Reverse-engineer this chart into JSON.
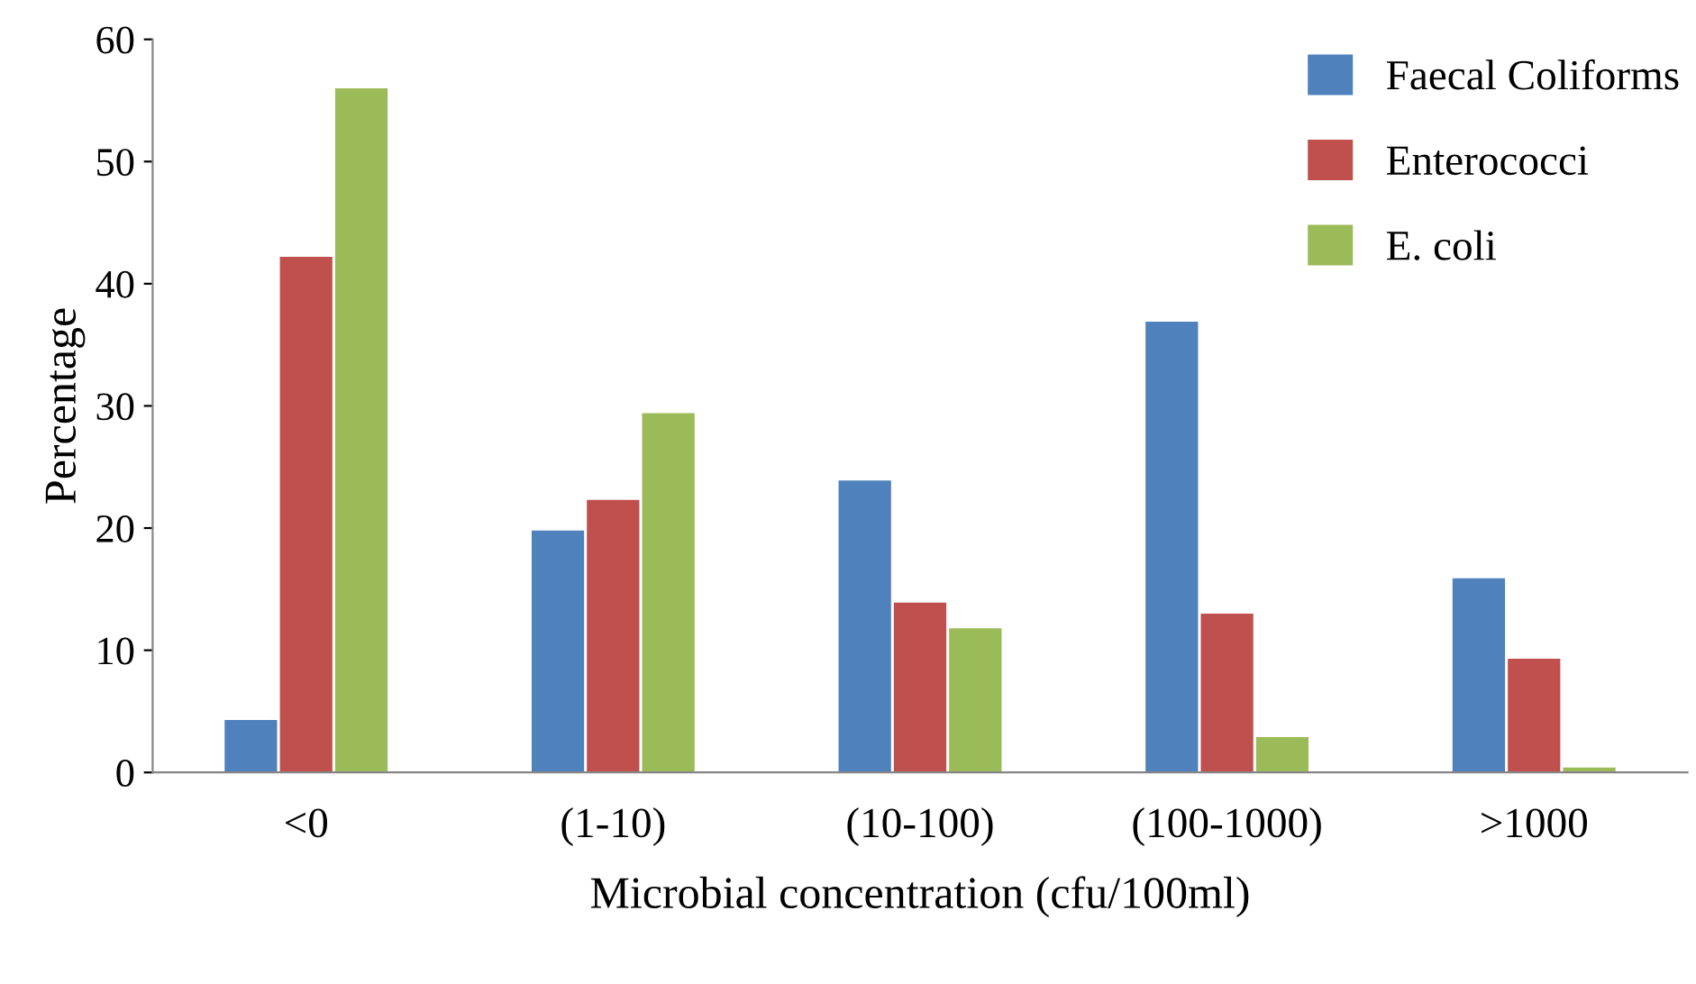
{
  "chart_data": {
    "type": "bar",
    "xlabel": "Microbial concentration (cfu/100ml)",
    "ylabel": "Percentage",
    "categories": [
      "<0",
      "(1-10)",
      "(10-100)",
      "(100-1000)",
      ">1000"
    ],
    "series": [
      {
        "name": "Faecal Coliforms",
        "color": "#4f81bd",
        "values": [
          4.3,
          19.8,
          23.9,
          36.9,
          15.9
        ]
      },
      {
        "name": "Enterococci",
        "color": "#c0504d",
        "values": [
          42.2,
          22.3,
          13.9,
          13.0,
          9.3
        ]
      },
      {
        "name": "E. coli",
        "color": "#9bbb59",
        "values": [
          56.0,
          29.4,
          11.8,
          2.9,
          0.4
        ]
      }
    ],
    "ylim": [
      0,
      60
    ],
    "yticks": [
      0,
      10,
      20,
      30,
      40,
      50,
      60
    ],
    "grid": false,
    "legend": "top right"
  }
}
